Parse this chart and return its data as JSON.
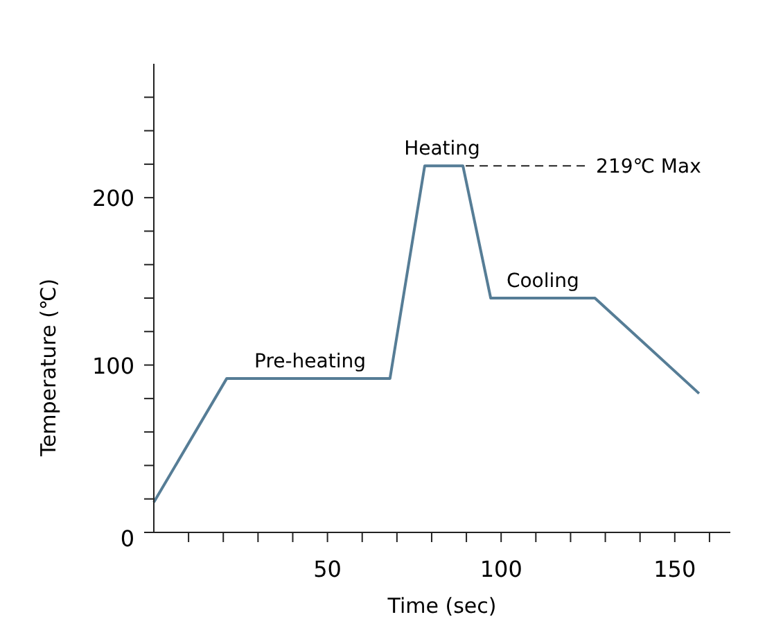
{
  "chart_data": {
    "type": "line",
    "xlabel": "Time (sec)",
    "ylabel": "Temperature (℃)",
    "x": [
      0,
      21,
      68,
      78,
      89,
      97,
      127,
      157
    ],
    "series": [
      {
        "color": "#567d96",
        "values": [
          18,
          92,
          92,
          219,
          219,
          140,
          140,
          83
        ]
      }
    ],
    "xlim": [
      0,
      166
    ],
    "ylim": [
      0,
      280
    ],
    "xticks": [
      {
        "value": 10,
        "label": null
      },
      {
        "value": 20,
        "label": null
      },
      {
        "value": 30,
        "label": null
      },
      {
        "value": 40,
        "label": null
      },
      50,
      {
        "value": 60,
        "label": null
      },
      {
        "value": 70,
        "label": null
      },
      {
        "value": 80,
        "label": null
      },
      {
        "value": 90,
        "label": null
      },
      100,
      {
        "value": 110,
        "label": null
      },
      {
        "value": 120,
        "label": null
      },
      {
        "value": 130,
        "label": null
      },
      {
        "value": 140,
        "label": null
      },
      150,
      {
        "value": 160,
        "label": null
      }
    ],
    "yticks": [
      0,
      {
        "value": 20,
        "label": null
      },
      {
        "value": 40,
        "label": null
      },
      {
        "value": 60,
        "label": null
      },
      {
        "value": 80,
        "label": null
      },
      100,
      {
        "value": 120,
        "label": null
      },
      {
        "value": 140,
        "label": null
      },
      {
        "value": 160,
        "label": null
      },
      {
        "value": 180,
        "label": null
      },
      200,
      {
        "value": 220,
        "label": null
      },
      {
        "value": 240,
        "label": null
      },
      {
        "value": 260,
        "label": null
      }
    ],
    "grid": false,
    "marker": "none",
    "line_style": "solid",
    "annotations": [
      {
        "text": "Pre-heating",
        "x": 45,
        "y": 92
      },
      {
        "text": "Heating",
        "x": 83,
        "y": 219
      },
      {
        "text": "Cooling",
        "x": 112,
        "y": 140
      },
      {
        "text": "219℃ Max",
        "x": 89,
        "y": 219
      }
    ]
  }
}
